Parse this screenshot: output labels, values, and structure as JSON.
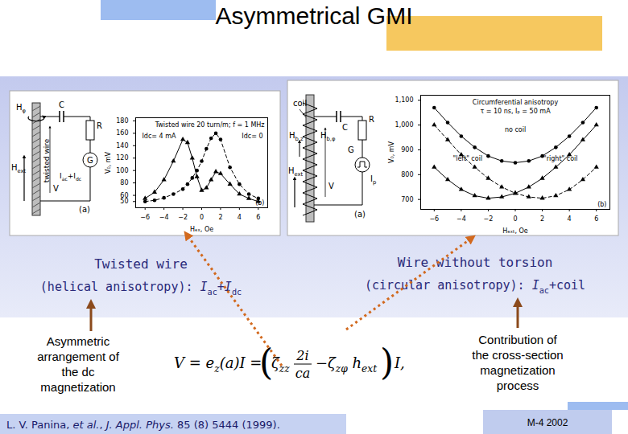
{
  "chart_data": [
    {
      "type": "line",
      "title": "Twisted wire 20 turn/m; f = 1 MHz",
      "x_label": "Hₑₓ, Oe",
      "y_label": "V₀, mV",
      "panel_label": "(b)",
      "x": [
        -6,
        -5,
        -4,
        -3,
        -2,
        -1.5,
        -1,
        -0.5,
        0,
        0.5,
        1,
        1.5,
        2,
        3,
        4,
        5,
        6
      ],
      "series": [
        {
          "name": "Idc= 4 mA",
          "color": "#000000",
          "marker": "triangle",
          "line_style": "solid",
          "values": [
            55,
            65,
            85,
            115,
            150,
            145,
            120,
            90,
            68,
            72,
            85,
            98,
            95,
            78,
            62,
            55,
            50
          ]
        },
        {
          "name": "Idc= 0",
          "color": "#000000",
          "marker": "circle",
          "line_style": "dashed",
          "values": [
            50,
            52,
            56,
            62,
            70,
            78,
            88,
            100,
            115,
            135,
            152,
            160,
            150,
            105,
            78,
            62,
            55
          ]
        }
      ],
      "xlim": [
        -7,
        7
      ],
      "ylim": [
        40,
        185
      ],
      "xticks": [
        -6,
        -4,
        -2,
        0,
        2,
        4,
        6
      ],
      "yticks": [
        50,
        60,
        80,
        100,
        120,
        140,
        160,
        180
      ],
      "grid": false
    },
    {
      "type": "line",
      "title": "Circumferential anisotropy",
      "subtitle": "τ = 10 ns, Iₚ = 50 mA",
      "x_label": "Hₑₓₜ, Oe",
      "y_label": "V₀, mV",
      "panel_label": "(b)",
      "x": [
        -6,
        -5,
        -4,
        -3,
        -2,
        -1,
        0,
        1,
        2,
        3,
        4,
        5,
        6
      ],
      "series": [
        {
          "name": "no coil",
          "color": "#000000",
          "marker": "circle",
          "line_style": "solid",
          "values": [
            1070,
            1010,
            955,
            910,
            875,
            855,
            848,
            855,
            875,
            910,
            955,
            1010,
            1070
          ]
        },
        {
          "name": "\"left\" coil",
          "color": "#000000",
          "marker": "triangle",
          "line_style": "dashed",
          "values": [
            1000,
            940,
            880,
            830,
            785,
            750,
            725,
            710,
            705,
            715,
            740,
            780,
            830
          ]
        },
        {
          "name": "\"right\" coil",
          "color": "#000000",
          "marker": "triangle",
          "line_style": "solid",
          "values": [
            830,
            780,
            740,
            715,
            705,
            710,
            725,
            750,
            785,
            830,
            880,
            940,
            1000
          ]
        }
      ],
      "xlim": [
        -7,
        7
      ],
      "ylim": [
        660,
        1120
      ],
      "xticks": [
        -6,
        -4,
        -2,
        0,
        2,
        4,
        6
      ],
      "yticks": [
        700,
        800,
        900,
        1000,
        1100
      ],
      "grid": false
    }
  ],
  "slide": {
    "title": "Asymmetrical GMI",
    "left_caption": {
      "line1": [
        {
          "t": "Twisted wire"
        }
      ],
      "line2": [
        {
          "t": "(helical anisotropy): "
        },
        {
          "t": "I",
          "i": true
        },
        {
          "t": "ac",
          "sub": true
        },
        {
          "t": "+"
        },
        {
          "t": "I",
          "i": true
        },
        {
          "t": "dc",
          "sub": true
        }
      ]
    },
    "right_caption": {
      "line1": [
        {
          "t": "Wire without torsion"
        }
      ],
      "line2": [
        {
          "t": "(circular anisotropy): "
        },
        {
          "t": "I",
          "i": true
        },
        {
          "t": "ac",
          "sub": true
        },
        {
          "t": "+coil"
        }
      ]
    },
    "left_note": [
      "Asymmetric",
      "arrangement of",
      "the dc",
      "magnetization"
    ],
    "right_note": [
      "Contribution of",
      "the cross-section",
      "magnetization",
      "process"
    ],
    "equation": {
      "lhs": [
        {
          "t": "V = e"
        },
        {
          "t": "z",
          "sub": true
        },
        {
          "t": "(a)I ="
        }
      ],
      "open": "(",
      "t1": [
        {
          "t": "ζ"
        },
        {
          "t": "zz",
          "sub": true
        }
      ],
      "num": "2i",
      "den": "ca",
      "minus": "−",
      "t2": [
        {
          "t": "ζ"
        },
        {
          "t": "zφ",
          "sub": true
        },
        {
          "t": " h"
        },
        {
          "t": "ext",
          "sub": true
        }
      ],
      "close": ")",
      "tail": "I,"
    },
    "citation": [
      {
        "t": "L. V. Panina, "
      },
      {
        "t": "et al.",
        "i": true
      },
      {
        "t": ", "
      },
      {
        "t": "J. Appl. Phys.",
        "i": true
      },
      {
        "t": " 85 (8) 5444 (1999)."
      }
    ],
    "footer": "M-4 2002",
    "left_diagram": {
      "h_phi": [
        {
          "t": "H"
        },
        {
          "t": "φ",
          "sub": true
        }
      ],
      "h_ext": [
        {
          "t": "H"
        },
        {
          "t": "ext",
          "sub": true
        }
      ],
      "wire": "twisted wire",
      "c": "C",
      "r": "R",
      "g": "G",
      "source": [
        {
          "t": "I"
        },
        {
          "t": "ac",
          "sub": true
        },
        {
          "t": "+I"
        },
        {
          "t": "dc",
          "sub": true
        }
      ],
      "v": "V",
      "panel": "(a)"
    },
    "right_diagram": {
      "coil": "coil",
      "h_bz": [
        {
          "t": "H"
        },
        {
          "t": "b,z",
          "sub": true
        }
      ],
      "h_bphi": [
        {
          "t": "H"
        },
        {
          "t": "b,φ",
          "sub": true
        }
      ],
      "h_ext": [
        {
          "t": "H"
        },
        {
          "t": "ext",
          "sub": true
        }
      ],
      "c": "C",
      "r": "R",
      "g": "G",
      "source": [
        {
          "t": "I"
        },
        {
          "t": "p",
          "sub": true
        }
      ],
      "v": "V",
      "panel": "(a)"
    }
  }
}
